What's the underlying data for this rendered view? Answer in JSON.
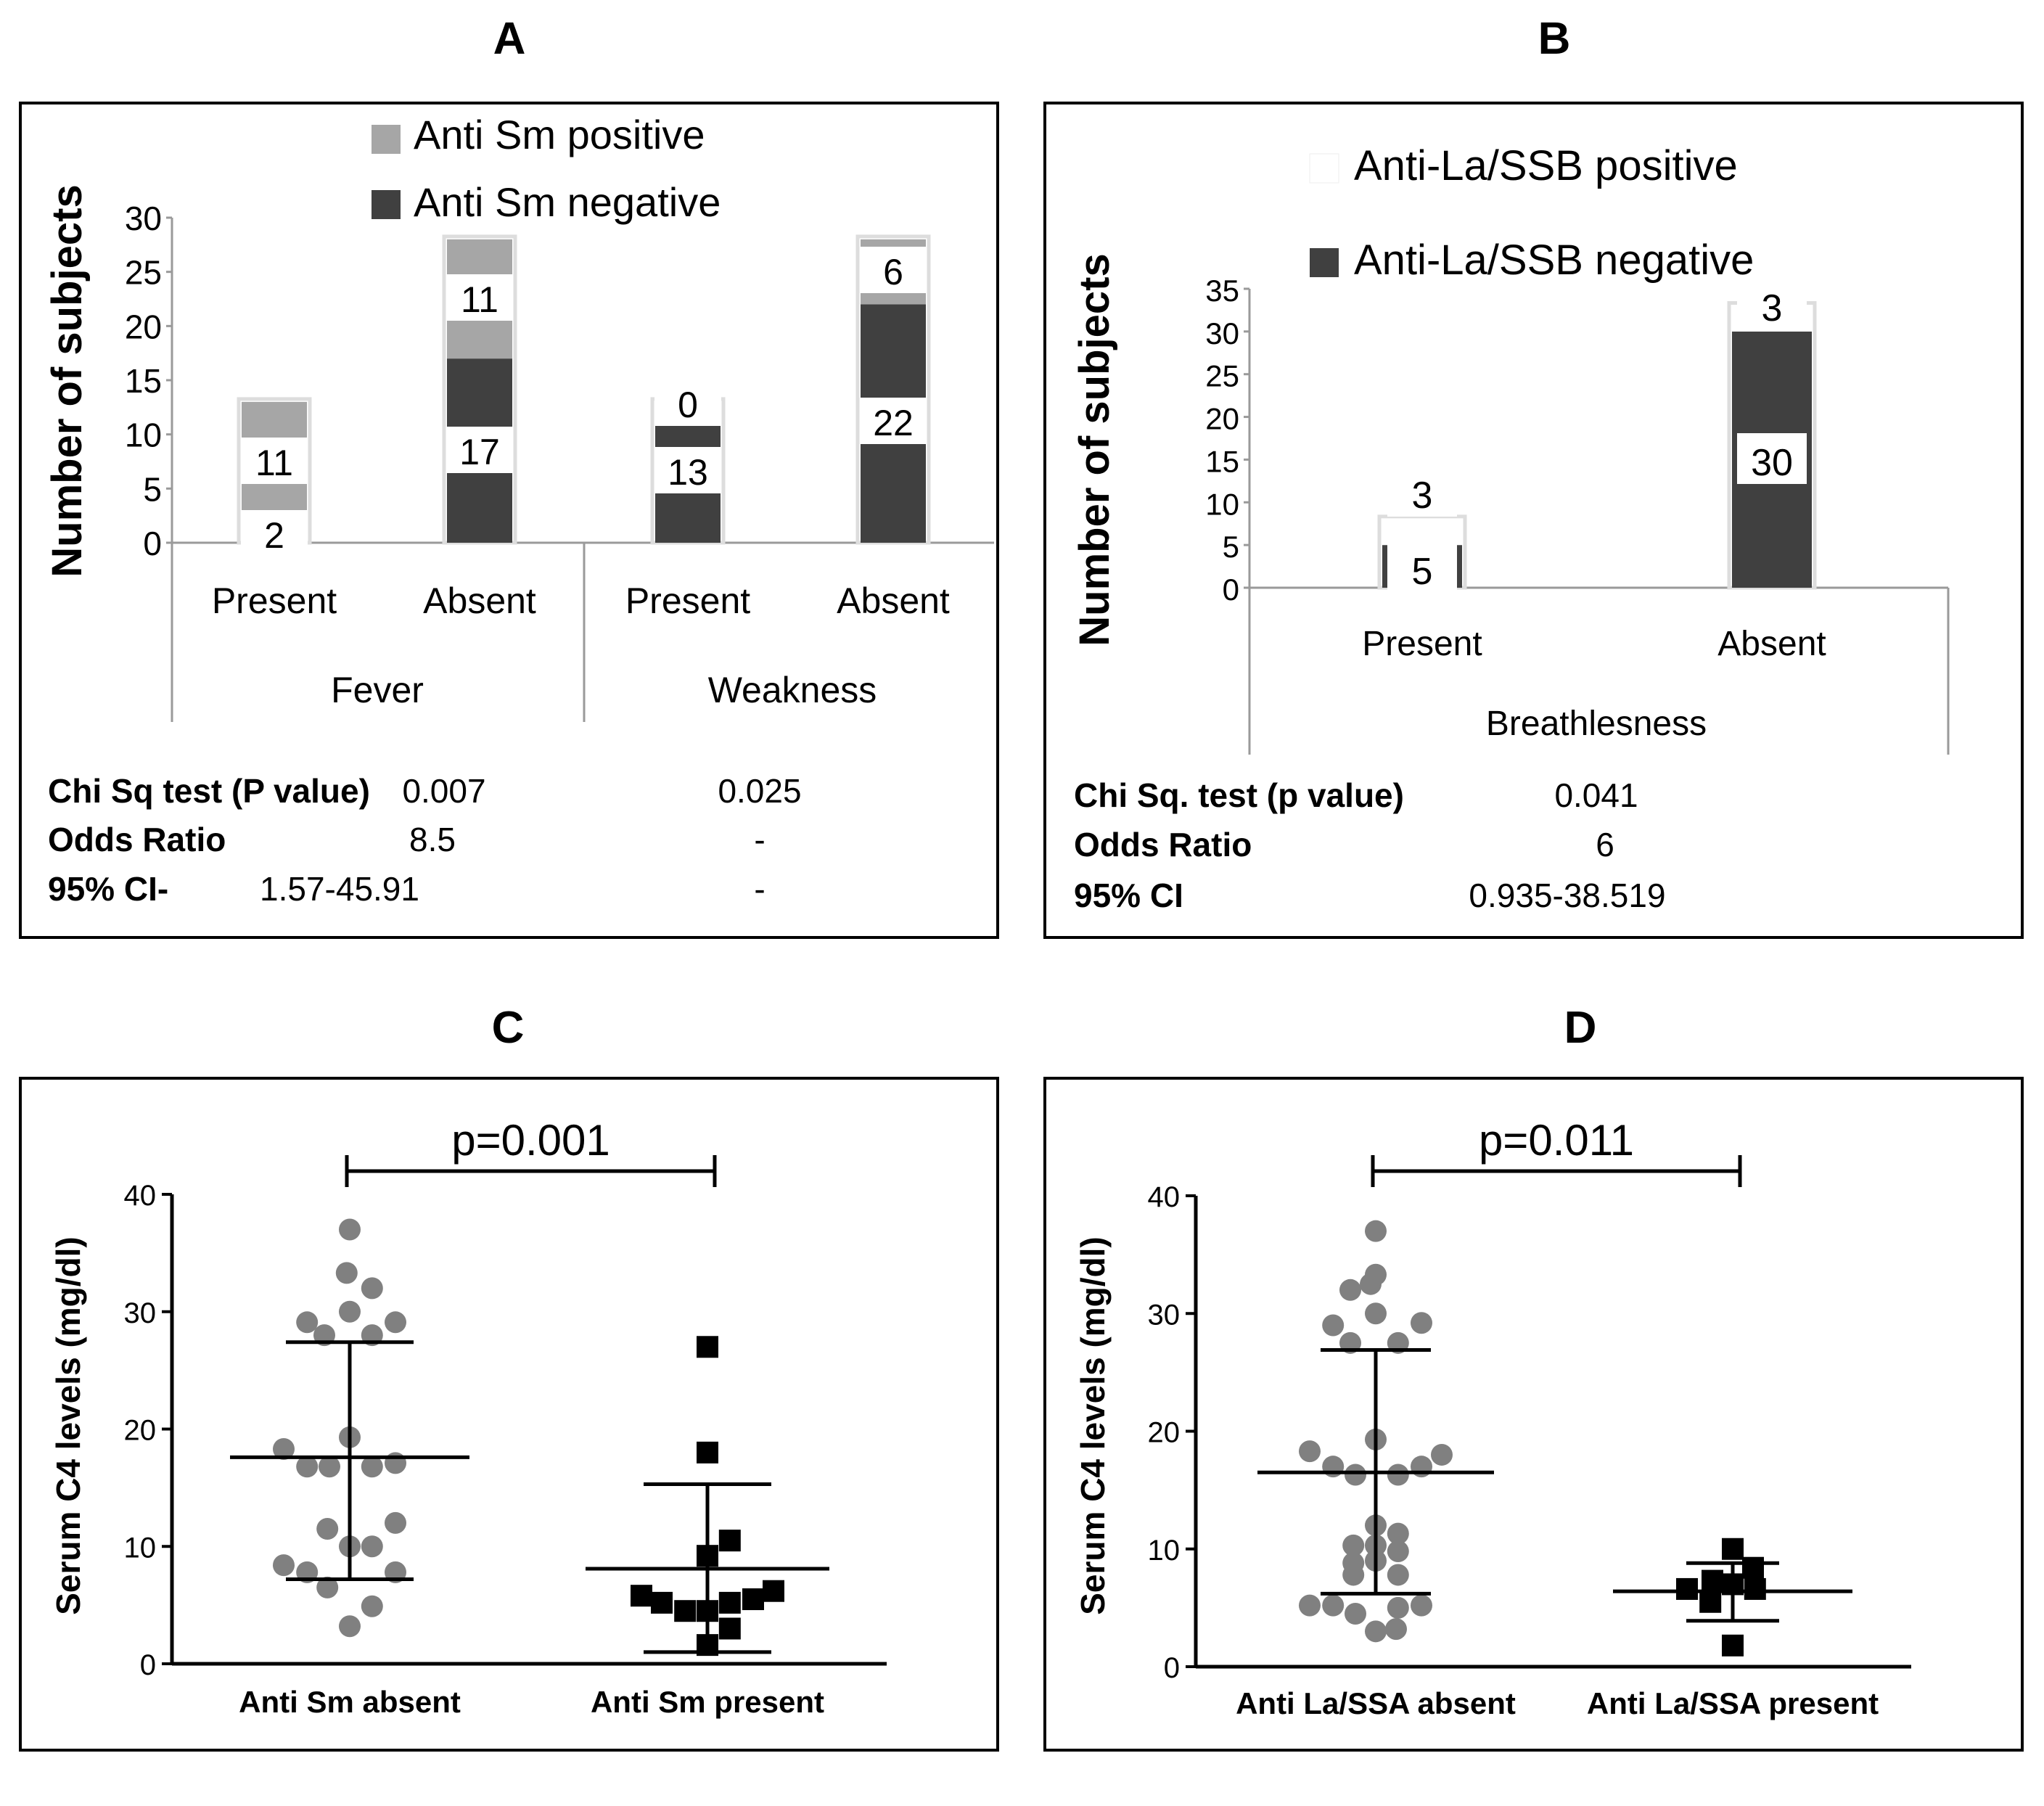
{
  "colors": {
    "positive": "#a6a6a6",
    "negative": "#404040",
    "frame": "#000000",
    "dot_gray": "#808080",
    "dot_black": "#000000",
    "axis": "#9a9a9a"
  },
  "panels": {
    "A": {
      "letter": "A",
      "legend": [
        "Anti Sm positive",
        "Anti Sm negative"
      ],
      "ylabel": "Number of subjects",
      "stats": {
        "row1_label": "Chi Sq test (P value)",
        "row1_fever": "0.007",
        "row1_weak": "0.025",
        "row2_label": "Odds Ratio",
        "row2_fever": "8.5",
        "row2_weak": "-",
        "row3_label": "95% CI-",
        "row3_fever": "1.57-45.91",
        "row3_weak": "-"
      }
    },
    "B": {
      "letter": "B",
      "legend": [
        "Anti-La/SSB positive",
        "Anti-La/SSB negative"
      ],
      "ylabel": "Number of subjects",
      "stats": {
        "row1_label": "Chi Sq. test (p value)",
        "row1_val": "0.041",
        "row2_label": "Odds Ratio",
        "row2_val": "6",
        "row3_label": "95% CI",
        "row3_val": "0.935-38.519"
      }
    },
    "C": {
      "letter": "C",
      "ylabel": "Serum C4 levels (mg/dl)",
      "pvalue": "p=0.001"
    },
    "D": {
      "letter": "D",
      "ylabel": "Serum C4 levels (mg/dl)",
      "pvalue": "p=0.011"
    }
  },
  "chart_data": [
    {
      "panel": "A",
      "type": "bar",
      "stacked": true,
      "groups": [
        "Fever",
        "Fever",
        "Weakness",
        "Weakness"
      ],
      "group_names": [
        "Fever",
        "Weakness"
      ],
      "categories": [
        "Present",
        "Absent",
        "Present",
        "Absent"
      ],
      "series": [
        {
          "name": "Anti Sm negative",
          "values": [
            2,
            17,
            13,
            22
          ]
        },
        {
          "name": "Anti Sm positive",
          "values": [
            11,
            11,
            0,
            6
          ]
        }
      ],
      "ylabel": "Number of subjects",
      "ylim": [
        0,
        30
      ],
      "yticks": [
        0,
        5,
        10,
        15,
        20,
        25,
        30
      ]
    },
    {
      "panel": "B",
      "type": "bar",
      "stacked": true,
      "groups": [
        "Breathlesness",
        "Breathlesness"
      ],
      "group_names": [
        "Breathlesness"
      ],
      "categories": [
        "Present",
        "Absent"
      ],
      "series": [
        {
          "name": "Anti-La/SSB negative",
          "values": [
            5,
            30
          ]
        },
        {
          "name": "Anti-La/SSB positive",
          "values": [
            3,
            3
          ]
        }
      ],
      "ylabel": "Number of subjects",
      "ylim": [
        0,
        35
      ],
      "yticks": [
        0,
        5,
        10,
        15,
        20,
        25,
        30,
        35
      ]
    },
    {
      "panel": "C",
      "type": "scatter",
      "ylabel": "Serum C4 levels (mg/dl)",
      "ylim": [
        0,
        40
      ],
      "yticks": [
        0,
        10,
        20,
        30,
        40
      ],
      "annotation": "p=0.001",
      "groups": [
        {
          "name": "Anti Sm absent",
          "marker": "circle",
          "mean": 17.6,
          "sd_low": 7.2,
          "sd_high": 27.4,
          "points": [
            {
              "dx": 0.0,
              "y": 37.0
            },
            {
              "dx": -0.03,
              "y": 33.3
            },
            {
              "dx": 0.22,
              "y": 32.0
            },
            {
              "dx": -0.42,
              "y": 29.1
            },
            {
              "dx": 0.0,
              "y": 30.0
            },
            {
              "dx": 0.45,
              "y": 29.1
            },
            {
              "dx": -0.25,
              "y": 28.0
            },
            {
              "dx": 0.22,
              "y": 28.0
            },
            {
              "dx": -0.65,
              "y": 18.3
            },
            {
              "dx": 0.0,
              "y": 19.3
            },
            {
              "dx": -0.42,
              "y": 16.8
            },
            {
              "dx": -0.2,
              "y": 16.8
            },
            {
              "dx": 0.22,
              "y": 16.8
            },
            {
              "dx": 0.45,
              "y": 17.1
            },
            {
              "dx": -0.22,
              "y": 11.5
            },
            {
              "dx": 0.45,
              "y": 12.0
            },
            {
              "dx": -0.65,
              "y": 8.4
            },
            {
              "dx": 0.0,
              "y": 10.0
            },
            {
              "dx": 0.22,
              "y": 10.0
            },
            {
              "dx": -0.42,
              "y": 7.8
            },
            {
              "dx": 0.45,
              "y": 7.8
            },
            {
              "dx": -0.22,
              "y": 6.5
            },
            {
              "dx": 0.22,
              "y": 4.9
            },
            {
              "dx": 0.0,
              "y": 3.2
            }
          ]
        },
        {
          "name": "Anti Sm present",
          "marker": "square",
          "mean": 8.1,
          "sd_low": 1.0,
          "sd_high": 15.3,
          "points": [
            {
              "dx": 0.0,
              "y": 27.0
            },
            {
              "dx": 0.0,
              "y": 18.0
            },
            {
              "dx": 0.22,
              "y": 10.5
            },
            {
              "dx": 0.0,
              "y": 9.2
            },
            {
              "dx": -0.65,
              "y": 5.8
            },
            {
              "dx": -0.45,
              "y": 5.2
            },
            {
              "dx": -0.22,
              "y": 4.5
            },
            {
              "dx": 0.0,
              "y": 4.5
            },
            {
              "dx": 0.22,
              "y": 5.2
            },
            {
              "dx": 0.45,
              "y": 5.5
            },
            {
              "dx": 0.65,
              "y": 6.2
            },
            {
              "dx": 0.22,
              "y": 3.0
            },
            {
              "dx": 0.0,
              "y": 1.6
            }
          ]
        }
      ]
    },
    {
      "panel": "D",
      "type": "scatter",
      "ylabel": "Serum C4 levels (mg/dl)",
      "ylim": [
        0,
        40
      ],
      "yticks": [
        0,
        10,
        20,
        30,
        40
      ],
      "annotation": "p=0.011",
      "groups": [
        {
          "name": "Anti La/SSA absent",
          "marker": "circle",
          "mean": 16.5,
          "sd_low": 6.2,
          "sd_high": 26.9,
          "points": [
            {
              "dx": 0.0,
              "y": 37.0
            },
            {
              "dx": 0.0,
              "y": 33.3
            },
            {
              "dx": -0.25,
              "y": 32.0
            },
            {
              "dx": -0.05,
              "y": 32.5
            },
            {
              "dx": -0.42,
              "y": 29.0
            },
            {
              "dx": 0.0,
              "y": 30.0
            },
            {
              "dx": 0.45,
              "y": 29.2
            },
            {
              "dx": -0.25,
              "y": 27.5
            },
            {
              "dx": 0.22,
              "y": 27.5
            },
            {
              "dx": -0.65,
              "y": 18.3
            },
            {
              "dx": 0.0,
              "y": 19.3
            },
            {
              "dx": 0.65,
              "y": 18.0
            },
            {
              "dx": -0.42,
              "y": 17.0
            },
            {
              "dx": -0.2,
              "y": 16.3
            },
            {
              "dx": 0.22,
              "y": 16.3
            },
            {
              "dx": 0.45,
              "y": 17.0
            },
            {
              "dx": 0.0,
              "y": 12.0
            },
            {
              "dx": 0.22,
              "y": 11.3
            },
            {
              "dx": -0.22,
              "y": 10.3
            },
            {
              "dx": 0.0,
              "y": 10.3
            },
            {
              "dx": 0.22,
              "y": 9.8
            },
            {
              "dx": -0.22,
              "y": 8.8
            },
            {
              "dx": 0.0,
              "y": 9.0
            },
            {
              "dx": -0.22,
              "y": 7.8
            },
            {
              "dx": 0.22,
              "y": 7.8
            },
            {
              "dx": -0.65,
              "y": 5.2
            },
            {
              "dx": -0.42,
              "y": 5.2
            },
            {
              "dx": 0.22,
              "y": 5.0
            },
            {
              "dx": 0.45,
              "y": 5.2
            },
            {
              "dx": -0.2,
              "y": 4.5
            },
            {
              "dx": 0.0,
              "y": 3.0
            },
            {
              "dx": 0.2,
              "y": 3.2
            }
          ]
        },
        {
          "name": "Anti La/SSA present",
          "marker": "square",
          "mean": 6.4,
          "sd_low": 3.9,
          "sd_high": 8.8,
          "points": [
            {
              "dx": 0.0,
              "y": 10.0
            },
            {
              "dx": 0.2,
              "y": 8.4
            },
            {
              "dx": -0.2,
              "y": 7.3
            },
            {
              "dx": 0.0,
              "y": 7.0
            },
            {
              "dx": -0.45,
              "y": 6.6
            },
            {
              "dx": -0.22,
              "y": 5.5
            },
            {
              "dx": 0.22,
              "y": 6.6
            },
            {
              "dx": 0.0,
              "y": 1.8
            }
          ]
        }
      ]
    }
  ]
}
